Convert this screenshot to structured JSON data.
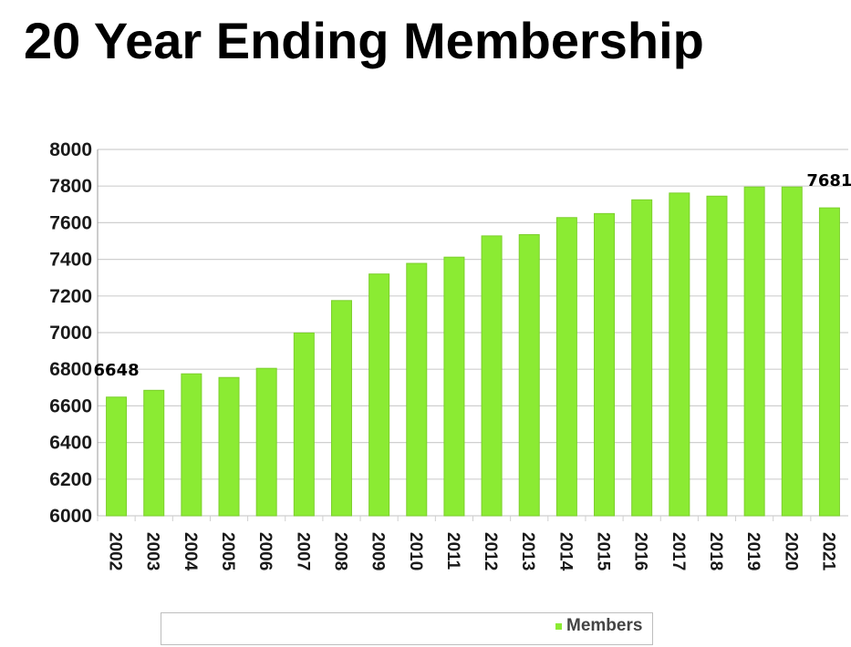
{
  "title": "20 Year Ending Membership",
  "colors": {
    "bar": "#8BEB33",
    "bar_edge": "#7ccf2c",
    "grid": "#cfcfcf",
    "axis": "#999999"
  },
  "chart_data": {
    "type": "bar",
    "title": "20 Year Ending Membership",
    "categories": [
      "2002",
      "2003",
      "2004",
      "2005",
      "2006",
      "2007",
      "2008",
      "2009",
      "2010",
      "2011",
      "2012",
      "2013",
      "2014",
      "2015",
      "2016",
      "2017",
      "2018",
      "2019",
      "2020",
      "2021"
    ],
    "series": [
      {
        "name": "Members",
        "values": [
          6648,
          6685,
          6775,
          6755,
          6805,
          6998,
          7175,
          7320,
          7378,
          7412,
          7528,
          7535,
          7628,
          7650,
          7725,
          7762,
          7745,
          7795,
          7795,
          7681
        ]
      }
    ],
    "ylim": [
      6000,
      8000
    ],
    "yticks": [
      "6000",
      "6200",
      "6400",
      "6600",
      "6800",
      "7000",
      "7200",
      "7400",
      "7600",
      "7800",
      "8000"
    ],
    "data_labels": [
      {
        "category": "2002",
        "text": "6648"
      },
      {
        "category": "2021",
        "text": "7681"
      }
    ],
    "legend": {
      "entries": [
        "Members"
      ],
      "position": "bottom"
    },
    "grid": true,
    "xlabel": "",
    "ylabel": ""
  }
}
